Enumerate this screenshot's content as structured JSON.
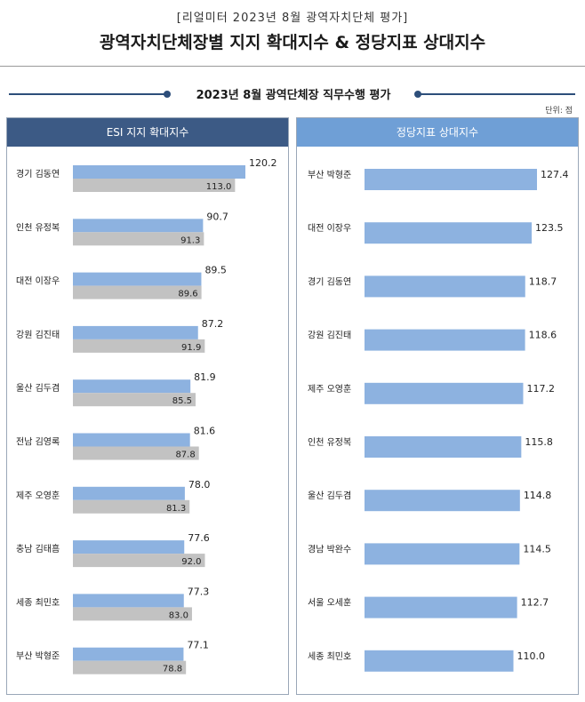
{
  "header": {
    "top_label": "[리얼미터 2023년 8월 광역자치단체 평가]",
    "main_title": "광역자치단체장별 지지 확대지수 & 정당지표 상대지수",
    "subtitle": "2023년 8월 광역단체장 직무수행 평가",
    "unit": "단위: 점"
  },
  "colors": {
    "bar_blue": "#8db2e0",
    "bar_gray": "#c2c2c2",
    "header_dark": "#3c5a85",
    "header_light": "#6f9fd6"
  },
  "chart_data": [
    {
      "type": "bar",
      "title": "ESI 지지 확대지수",
      "categories": [
        "경기 김동연",
        "인천 유정복",
        "대전 이장우",
        "강원 김진태",
        "울산 김두겸",
        "전남 김영록",
        "제주 오영훈",
        "충남 김태흠",
        "세종 최민호",
        "부산 박형준"
      ],
      "series": [
        {
          "values": [
            120.2,
            90.7,
            89.5,
            87.2,
            81.9,
            81.6,
            78.0,
            77.6,
            77.3,
            77.1
          ]
        },
        {
          "values": [
            113.0,
            91.3,
            89.6,
            91.9,
            85.5,
            87.8,
            81.3,
            92.0,
            83.0,
            78.8
          ]
        }
      ],
      "value_labels": [
        [
          "120.2",
          "90.7",
          "89.5",
          "87.2",
          "81.9",
          "81.6",
          "78.0",
          "77.6",
          "77.3",
          "77.1"
        ],
        [
          "113.0",
          "91.3",
          "89.6",
          "91.9",
          "85.5",
          "87.8",
          "81.3",
          "92.0",
          "83.0",
          "78.8"
        ]
      ],
      "xlim": [
        0,
        140
      ],
      "orientation": "horizontal"
    },
    {
      "type": "bar",
      "title": "정당지표 상대지수",
      "categories": [
        "부산 박형준",
        "대전 이장우",
        "경기 김동연",
        "강원 김진태",
        "제주 오영훈",
        "인천 유정복",
        "울산 김두겸",
        "경남 박완수",
        "서울 오세훈",
        "세종 최민호"
      ],
      "series": [
        {
          "values": [
            127.4,
            123.5,
            118.7,
            118.6,
            117.2,
            115.8,
            114.8,
            114.5,
            112.7,
            110.0
          ]
        }
      ],
      "value_labels": [
        [
          "127.4",
          "123.5",
          "118.7",
          "118.6",
          "117.2",
          "115.8",
          "114.8",
          "114.5",
          "112.7",
          "110.0"
        ]
      ],
      "xlim": [
        0,
        140
      ],
      "orientation": "horizontal"
    }
  ]
}
